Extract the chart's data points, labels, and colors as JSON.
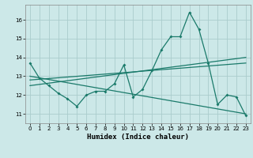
{
  "xlabel": "Humidex (Indice chaleur)",
  "background_color": "#cce8e8",
  "grid_color": "#aacccc",
  "line_color": "#1a7a6a",
  "xlim": [
    -0.5,
    23.5
  ],
  "ylim": [
    10.5,
    16.8
  ],
  "yticks": [
    11,
    12,
    13,
    14,
    15,
    16
  ],
  "xticks": [
    0,
    1,
    2,
    3,
    4,
    5,
    6,
    7,
    8,
    9,
    10,
    11,
    12,
    13,
    14,
    15,
    16,
    17,
    18,
    19,
    20,
    21,
    22,
    23
  ],
  "series1_x": [
    0,
    1,
    2,
    3,
    4,
    5,
    6,
    7,
    8,
    9,
    10,
    11,
    12,
    13,
    14,
    15,
    16,
    17,
    18,
    19,
    20,
    21,
    22,
    23
  ],
  "series1_y": [
    13.7,
    12.9,
    12.5,
    12.1,
    11.8,
    11.4,
    12.0,
    12.2,
    12.2,
    12.6,
    13.6,
    11.9,
    12.3,
    13.3,
    14.4,
    15.1,
    15.1,
    16.4,
    15.5,
    13.7,
    11.5,
    12.0,
    11.9,
    10.9
  ],
  "series2_x": [
    0,
    23
  ],
  "series2_y": [
    12.8,
    13.7
  ],
  "series3_x": [
    0,
    23
  ],
  "series3_y": [
    13.0,
    11.0
  ],
  "series4_x": [
    0,
    23
  ],
  "series4_y": [
    12.5,
    14.0
  ]
}
